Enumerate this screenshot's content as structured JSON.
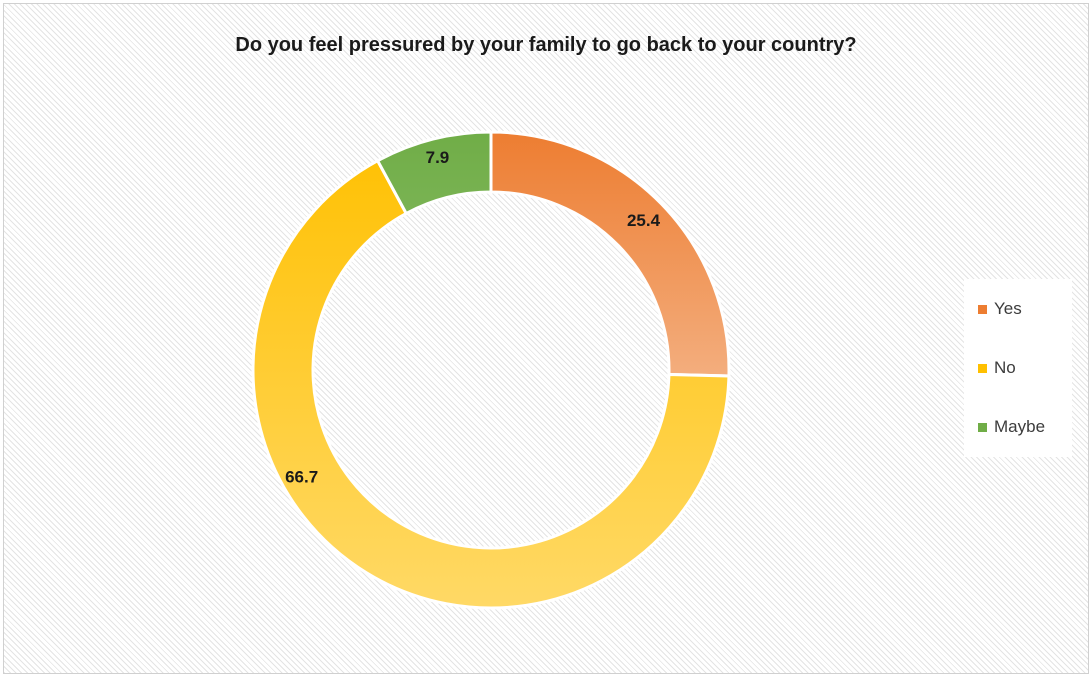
{
  "chart_data": {
    "type": "pie",
    "subtype": "donut",
    "title": "Do you feel pressured by your family to go back to your country?",
    "categories": [
      "Yes",
      "No",
      "Maybe"
    ],
    "values": [
      25.4,
      66.7,
      7.9
    ],
    "data_labels": [
      "25.4",
      "66.7",
      "7.9"
    ],
    "colors": [
      "#ed7d31",
      "#ffc000",
      "#70ad47"
    ],
    "gradient_light_colors": [
      "#f4b183",
      "#ffd966",
      "#a9d18e"
    ],
    "legend": {
      "position": "right",
      "entries": [
        "Yes",
        "No",
        "Maybe"
      ]
    }
  }
}
